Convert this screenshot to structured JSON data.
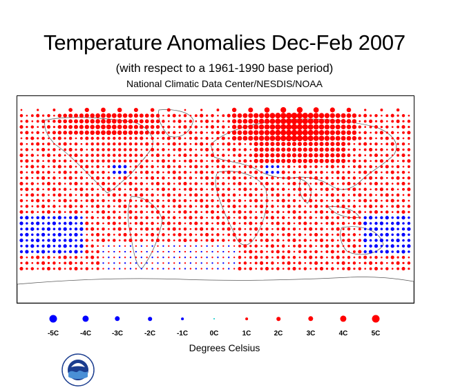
{
  "header": {
    "title": "Temperature Anomalies Dec-Feb 2007",
    "subtitle": "(with respect to a 1961-1990 base period)",
    "source": "National Climatic Data Center/NESDIS/NOAA"
  },
  "legend": {
    "items": [
      {
        "label": "-5C",
        "value": -5,
        "color": "#0000ff"
      },
      {
        "label": "-4C",
        "value": -4,
        "color": "#0000ff"
      },
      {
        "label": "-3C",
        "value": -3,
        "color": "#0000ff"
      },
      {
        "label": "-2C",
        "value": -2,
        "color": "#0000ff"
      },
      {
        "label": "-1C",
        "value": -1,
        "color": "#0000ff"
      },
      {
        "label": "0C",
        "value": 0,
        "color": "#00c8c8"
      },
      {
        "label": "1C",
        "value": 1,
        "color": "#ff0000"
      },
      {
        "label": "2C",
        "value": 2,
        "color": "#ff0000"
      },
      {
        "label": "3C",
        "value": 3,
        "color": "#ff0000"
      },
      {
        "label": "4C",
        "value": 4,
        "color": "#ff0000"
      },
      {
        "label": "5C",
        "value": 5,
        "color": "#ff0000"
      }
    ],
    "units": "Degrees Celsius"
  },
  "colors": {
    "warm": "#ff0000",
    "cool": "#0000ff",
    "neutral": "#00c8c8"
  },
  "logo": {
    "name": "noaa-logo",
    "text": "NOAA"
  }
}
